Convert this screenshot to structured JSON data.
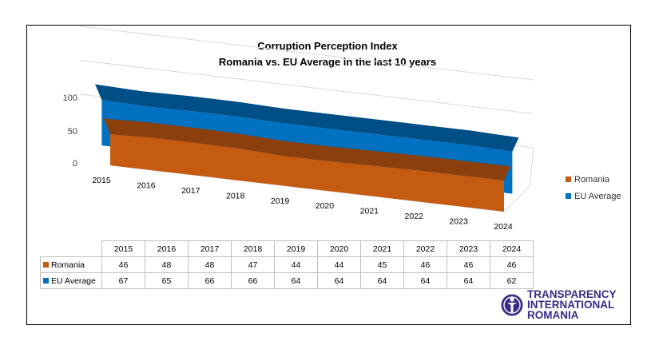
{
  "chart_data": {
    "type": "area",
    "title": "Corruption Perception Index",
    "subtitle": "Romania vs. EU Average in the last 10 years",
    "categories": [
      "2015",
      "2016",
      "2017",
      "2018",
      "2019",
      "2020",
      "2021",
      "2022",
      "2023",
      "2024"
    ],
    "y_ticks": [
      "100",
      "50",
      "0"
    ],
    "ylim": [
      0,
      100
    ],
    "series": [
      {
        "name": "Romania",
        "color": "#c55a11",
        "values": [
          46,
          48,
          48,
          47,
          44,
          44,
          45,
          46,
          46,
          46
        ]
      },
      {
        "name": "EU Average",
        "color": "#0070c0",
        "values": [
          67,
          65,
          66,
          66,
          64,
          64,
          64,
          64,
          64,
          62
        ]
      }
    ],
    "legend_position": "right",
    "data_table": true
  },
  "logo": {
    "line1": "TRANSPARENCY",
    "line2": "INTERNATIONAL",
    "line3": "ROMANIA"
  }
}
